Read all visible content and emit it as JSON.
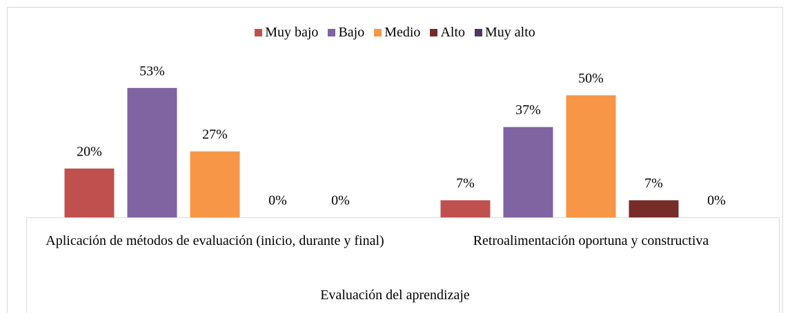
{
  "chart_data": {
    "type": "bar",
    "categories": [
      "Aplicación de métodos de evaluación (inicio, durante y final)",
      "Retroalimentación oportuna y constructiva"
    ],
    "x_label": "Evaluación del aprendizaje",
    "series": [
      {
        "name": "Muy bajo",
        "color": "#c0504d",
        "values": [
          20,
          7
        ],
        "value_labels": [
          "20%",
          "7%"
        ]
      },
      {
        "name": "Bajo",
        "color": "#8064a2",
        "values": [
          53,
          37
        ],
        "value_labels": [
          "53%",
          "37%"
        ]
      },
      {
        "name": "Medio",
        "color": "#f79646",
        "values": [
          27,
          50
        ],
        "value_labels": [
          "27%",
          "50%"
        ]
      },
      {
        "name": "Alto",
        "color": "#772c2a",
        "values": [
          0,
          7
        ],
        "value_labels": [
          "0%",
          "7%"
        ]
      },
      {
        "name": "Muy alto",
        "color": "#4f3564",
        "values": [
          0,
          0
        ],
        "value_labels": [
          "0%",
          "0%"
        ]
      }
    ],
    "ylim": [
      0,
      60
    ],
    "legend": "top"
  }
}
